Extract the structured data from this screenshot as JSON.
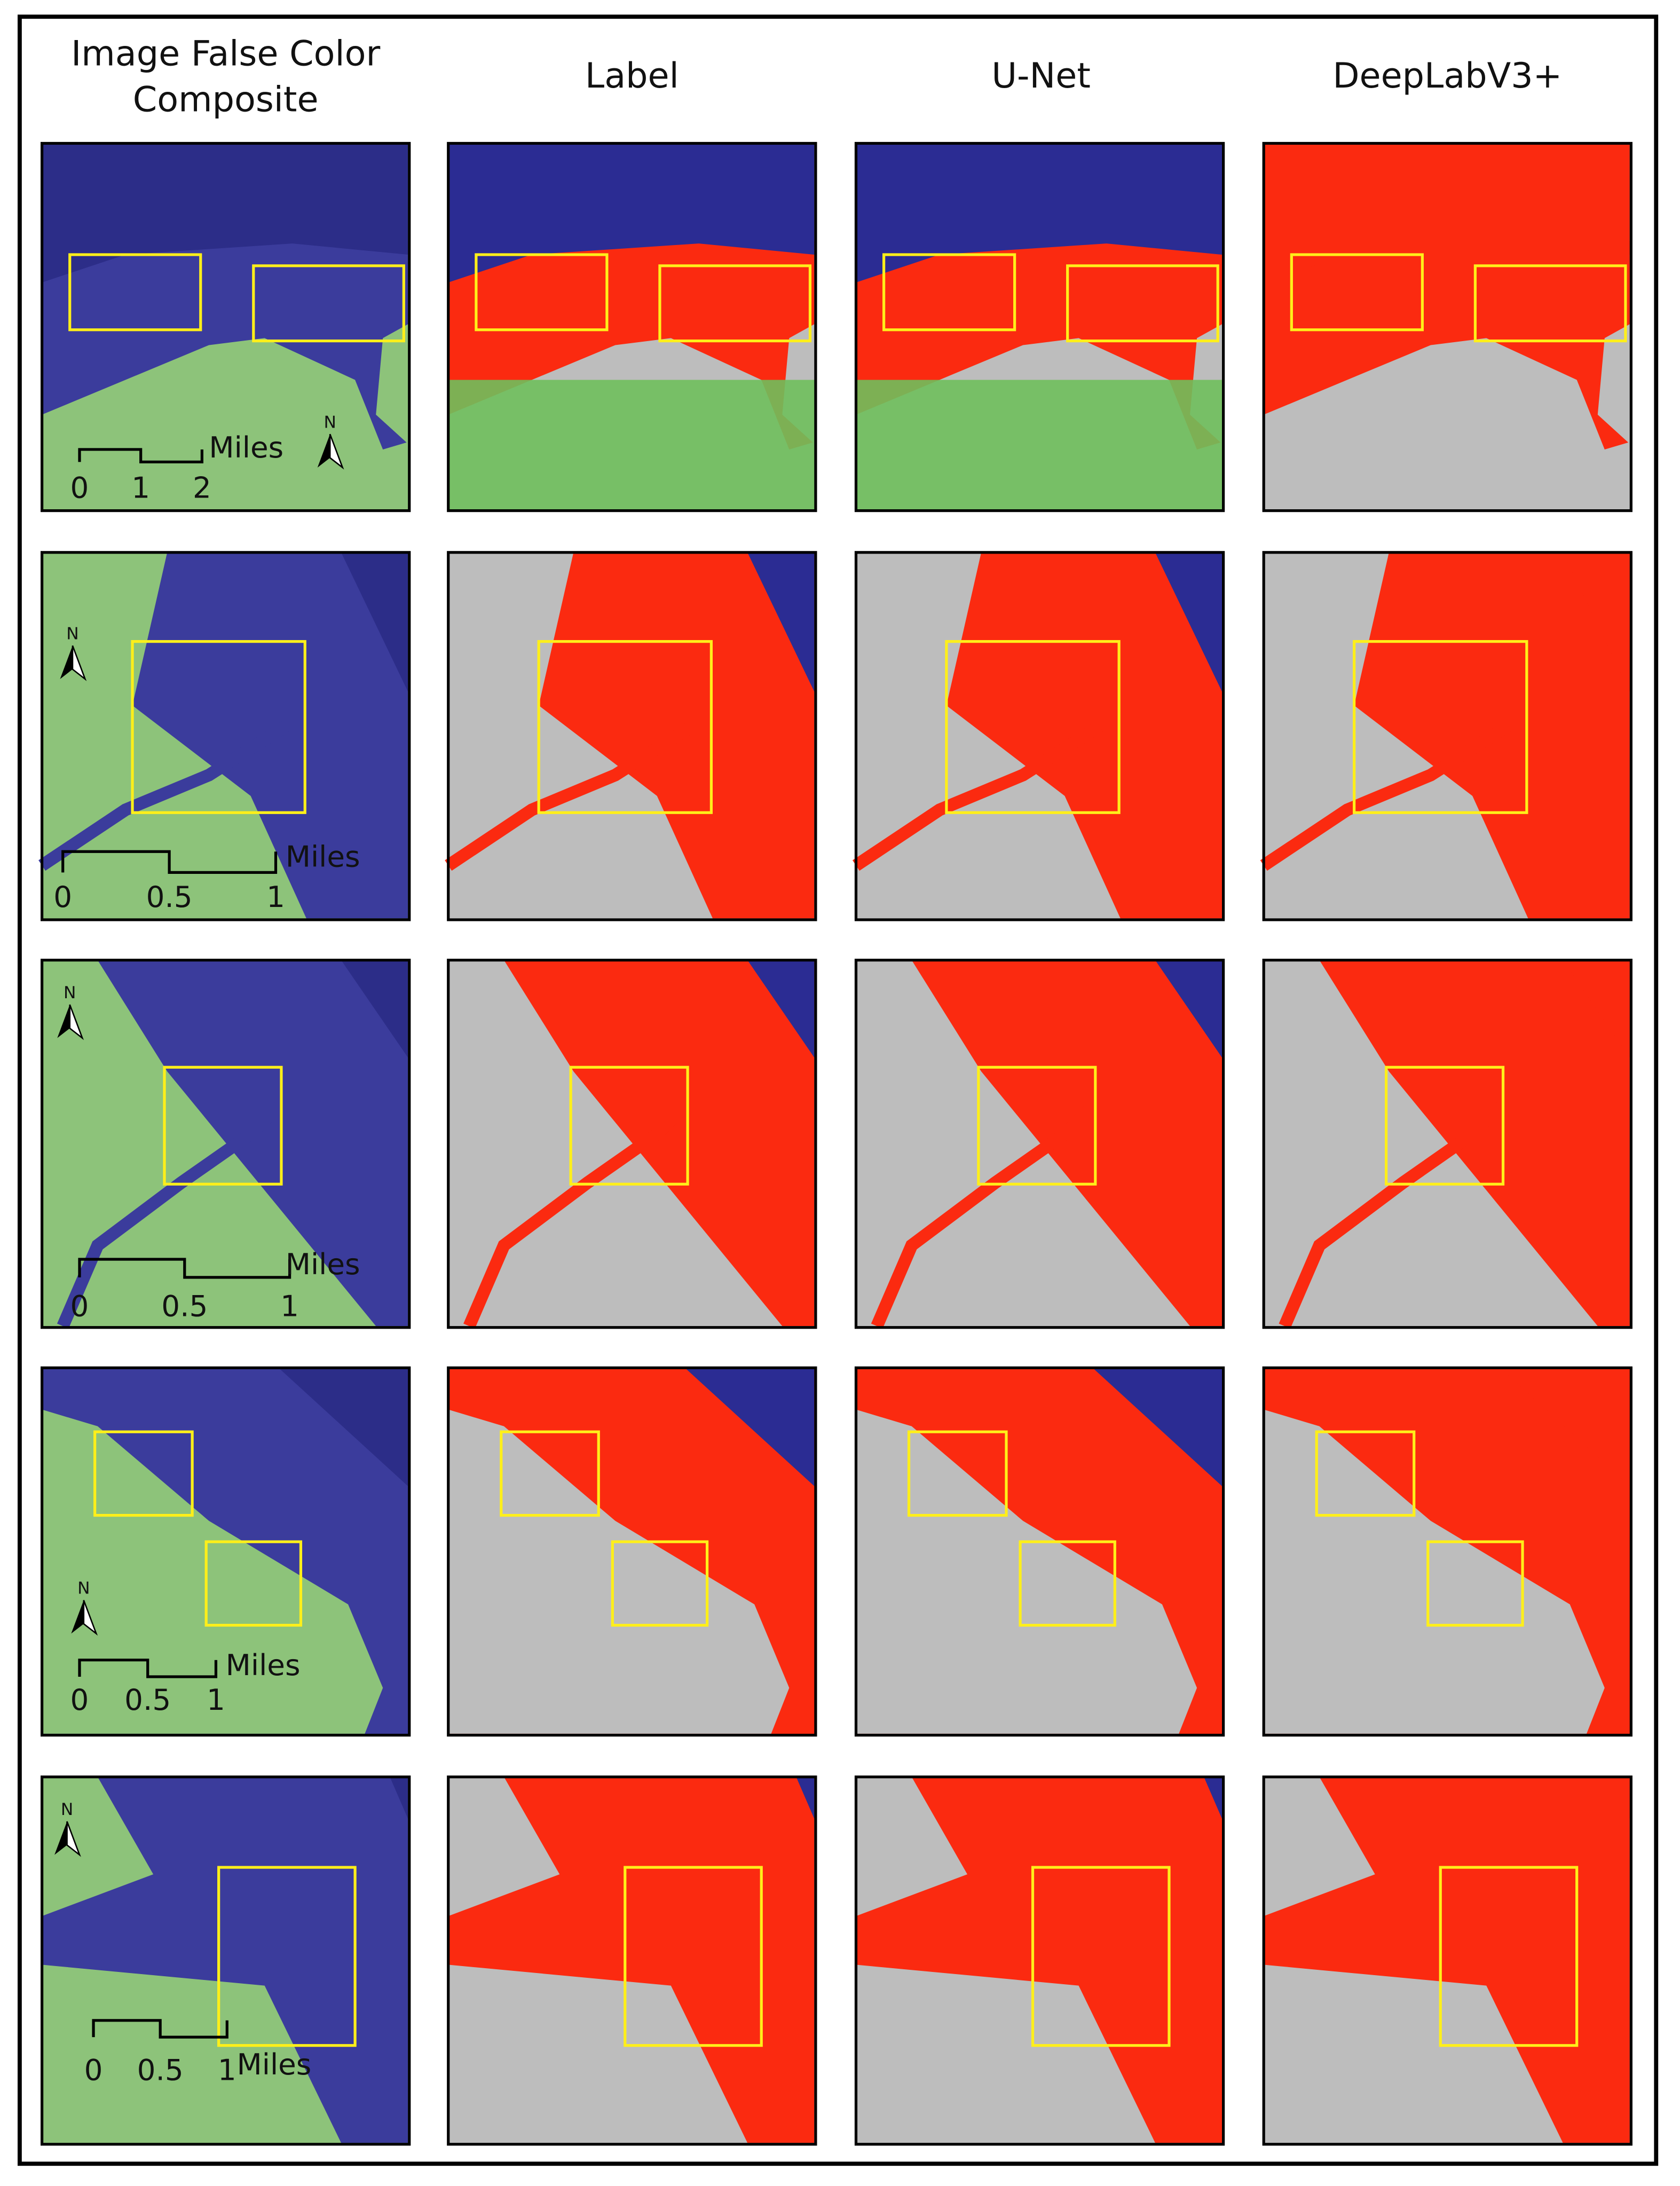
{
  "columns": [
    [
      "Image False Color",
      "Composite"
    ],
    [
      "Label"
    ],
    [
      "U-Net"
    ],
    [
      "DeepLabV3+"
    ]
  ],
  "rows": [
    {
      "scale_ticks": [
        "0",
        "1",
        "2"
      ],
      "scale_unit": "Miles",
      "north": "N"
    },
    {
      "scale_ticks": [
        "0",
        "0.5",
        "1"
      ],
      "scale_unit": "Miles",
      "north": "N"
    },
    {
      "scale_ticks": [
        "0",
        "0.5",
        "1"
      ],
      "scale_unit": "Miles",
      "north": "N"
    },
    {
      "scale_ticks": [
        "0",
        "0.5",
        "1"
      ],
      "scale_unit": "Miles",
      "north": "N"
    },
    {
      "scale_ticks": [
        "0",
        "0.5",
        "1"
      ],
      "scale_unit": "Miles",
      "north": "N"
    }
  ]
}
